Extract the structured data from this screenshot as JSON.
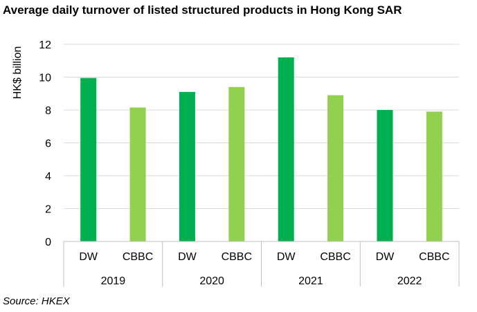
{
  "chart_data": {
    "type": "bar",
    "title": "Average daily turnover of listed structured products in Hong Kong SAR",
    "ylabel": "HK$ billion",
    "ylim": [
      0,
      12
    ],
    "yticks": [
      "0",
      "2",
      "4",
      "6",
      "8",
      "10",
      "12"
    ],
    "grid": true,
    "groups": [
      "2019",
      "2020",
      "2021",
      "2022"
    ],
    "categories": [
      "DW",
      "CBBC",
      "DW",
      "CBBC",
      "DW",
      "CBBC",
      "DW",
      "CBBC"
    ],
    "values": [
      9.95,
      8.15,
      9.1,
      9.4,
      11.2,
      8.9,
      8.0,
      7.9
    ],
    "colors": {
      "DW": "#00b050",
      "CBBC": "#92d050"
    }
  },
  "source": "Source: HKEX"
}
